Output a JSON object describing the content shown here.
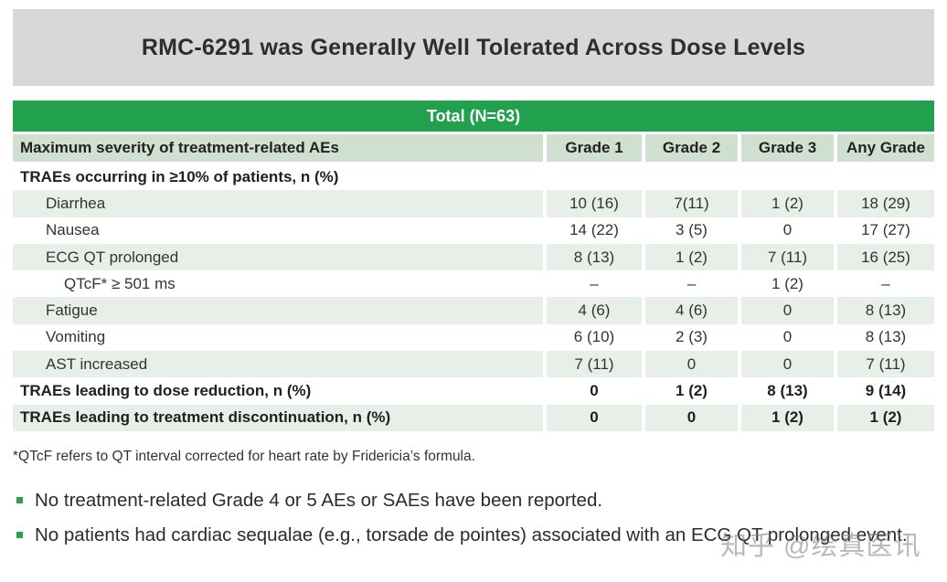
{
  "title_bar": {
    "text": "RMC-6291 was Generally Well Tolerated Across Dose Levels",
    "bg_color": "#d8d8d8",
    "text_color": "#2e2e2e"
  },
  "table": {
    "span_header": {
      "label": "Total (N=63)",
      "bg_color": "#21a04d",
      "text_color": "#ffffff"
    },
    "header": {
      "label": "Maximum severity of treatment-related AEs",
      "grades": [
        "Grade 1",
        "Grade 2",
        "Grade 3",
        "Any Grade"
      ],
      "bg_color": "#cfe0d1"
    },
    "row_shade_color": "#e8efe8",
    "rows": [
      {
        "label": "TRAEs occurring in ≥10% of patients, n (%)",
        "values": [
          "",
          "",
          "",
          ""
        ]
      },
      {
        "label": "Diarrhea",
        "values": [
          "10 (16)",
          "7(11)",
          "1 (2)",
          "18 (29)"
        ]
      },
      {
        "label": "Nausea",
        "values": [
          "14 (22)",
          "3 (5)",
          "0",
          "17 (27)"
        ]
      },
      {
        "label": "ECG QT prolonged",
        "values": [
          "8 (13)",
          "1 (2)",
          "7 (11)",
          "16 (25)"
        ]
      },
      {
        "label": "QTcF* ≥ 501 ms",
        "values": [
          "–",
          "–",
          "1 (2)",
          "–"
        ]
      },
      {
        "label": "Fatigue",
        "values": [
          "4 (6)",
          "4 (6)",
          "0",
          "8 (13)"
        ]
      },
      {
        "label": "Vomiting",
        "values": [
          "6 (10)",
          "2 (3)",
          "0",
          "8 (13)"
        ]
      },
      {
        "label": "AST increased",
        "values": [
          "7 (11)",
          "0",
          "0",
          "7 (11)"
        ]
      },
      {
        "label": "TRAEs leading to dose reduction, n (%)",
        "values": [
          "0",
          "1 (2)",
          "8 (13)",
          "9 (14)"
        ]
      },
      {
        "label": "TRAEs leading to treatment discontinuation, n (%)",
        "values": [
          "0",
          "0",
          "1 (2)",
          "1 (2)"
        ]
      }
    ]
  },
  "footnote": "*QTcF refers to QT interval corrected for heart rate by Fridericia’s formula.",
  "bullets": [
    "No treatment-related Grade 4 or 5 AEs or SAEs have been reported.",
    "No patients had cardiac sequalae (e.g., torsade de pointes) associated with an ECG QT prolonged event."
  ],
  "bullet_color": "#2f9e4e",
  "watermark": "知乎 @绘真医讯"
}
